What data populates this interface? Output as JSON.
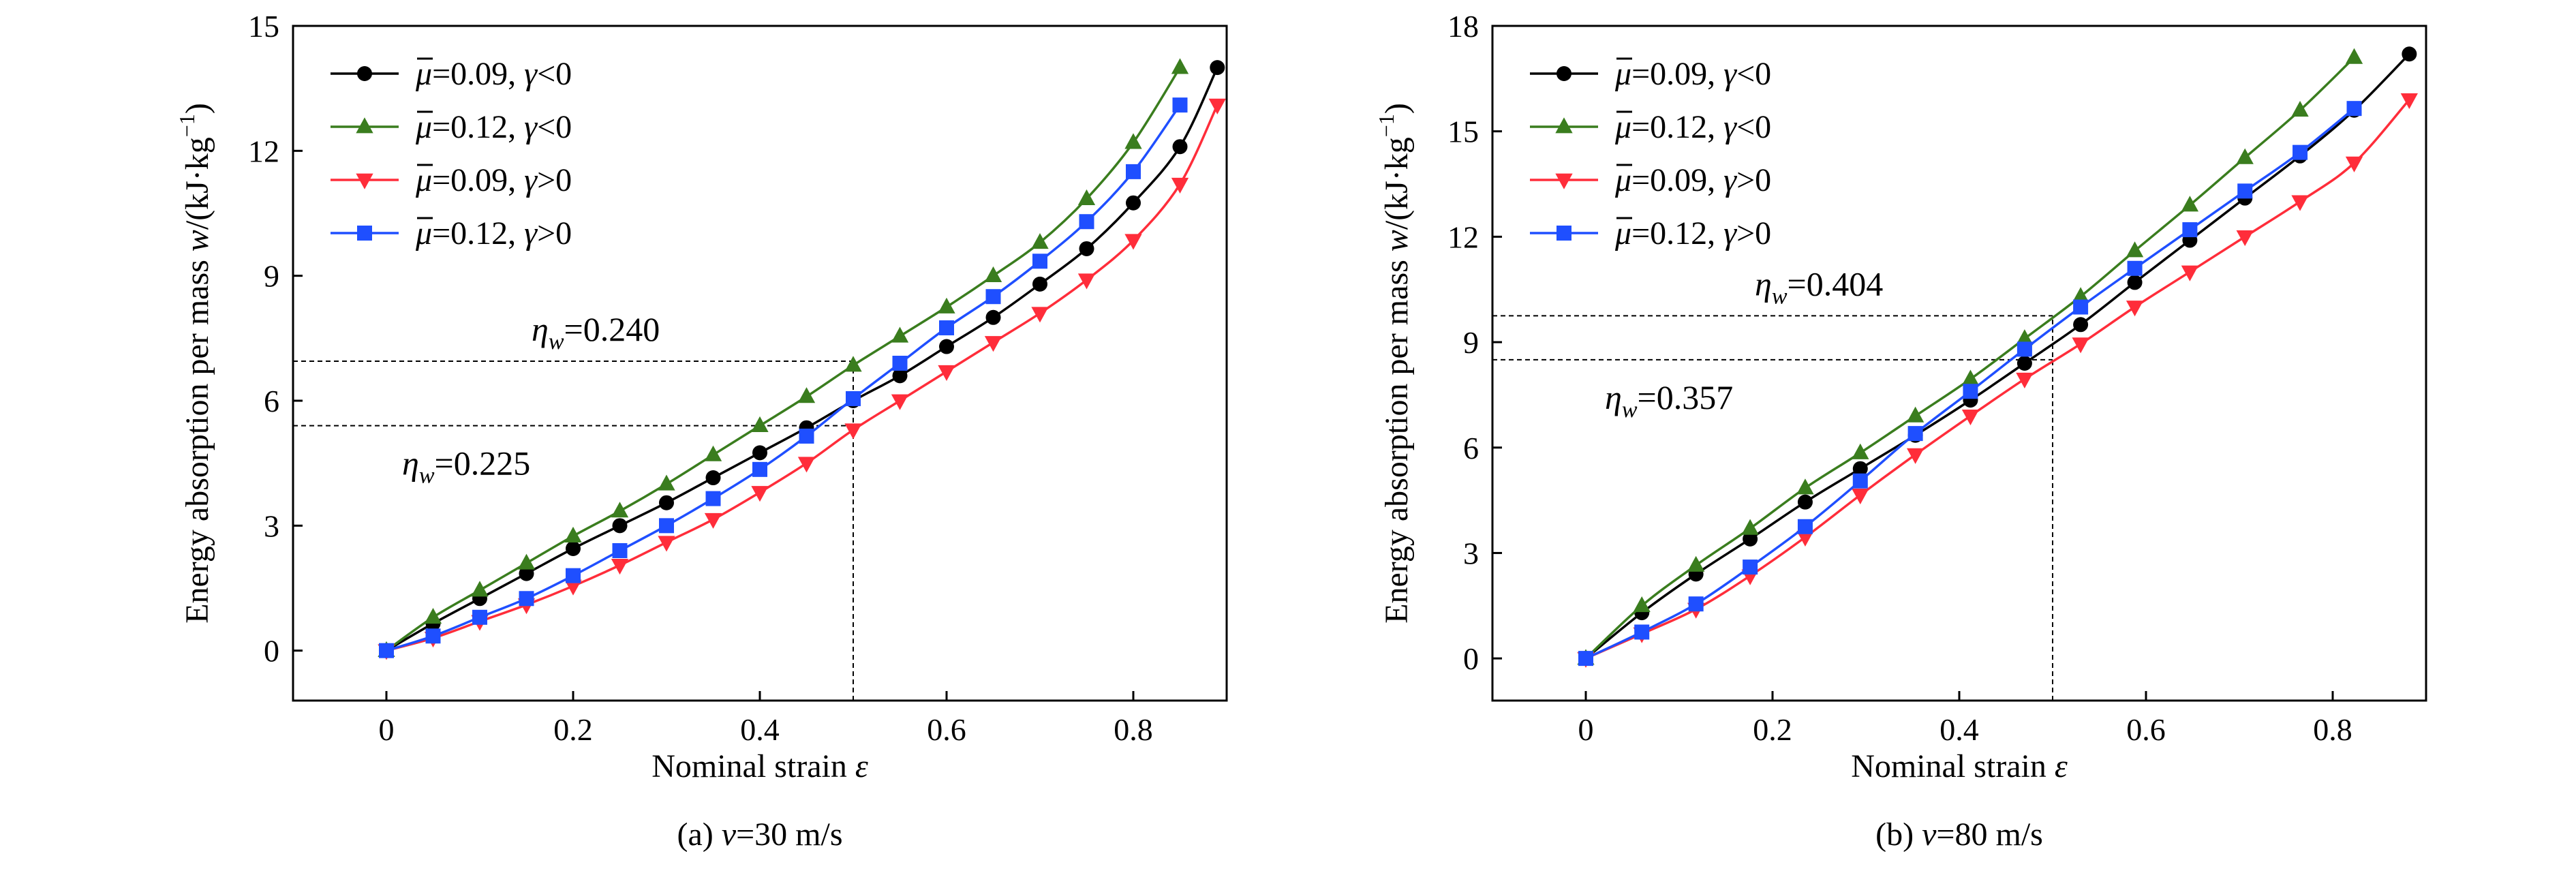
{
  "chart_data": [
    {
      "type": "line",
      "caption": {
        "prefix": "(a) ",
        "var": "v",
        "rest": "=30 m/s"
      },
      "xlabel": "Nominal strain",
      "xlabel_sym": "ε",
      "ylabel": "Energy absorption per mass",
      "ylabel_sym": "w",
      "ylabel_unit": "/(kJ·kg",
      "ylabel_exp": "−1",
      "xlim": [
        -0.1,
        0.9
      ],
      "ylim": [
        -1.2,
        15
      ],
      "xticks": [
        0,
        0.2,
        0.4,
        0.6,
        0.8
      ],
      "xtick_labels": [
        "0",
        "0.2",
        "0.4",
        "0.6",
        "0.8"
      ],
      "yticks": [
        0,
        3,
        6,
        9,
        12,
        15
      ],
      "ytick_labels": [
        "0",
        "3",
        "6",
        "9",
        "12",
        "15"
      ],
      "legend_position": "top-left",
      "series": [
        {
          "mu": "0.09",
          "gamma_rel": "<",
          "color": "#000000",
          "marker": "circle",
          "x": [
            0,
            0.05,
            0.1,
            0.15,
            0.2,
            0.25,
            0.3,
            0.35,
            0.4,
            0.45,
            0.5,
            0.55,
            0.6,
            0.65,
            0.7,
            0.75,
            0.8,
            0.85,
            0.89
          ],
          "y": [
            0,
            0.65,
            1.25,
            1.85,
            2.45,
            3.0,
            3.55,
            4.15,
            4.75,
            5.35,
            6.0,
            6.6,
            7.3,
            8.0,
            8.8,
            9.65,
            10.75,
            12.1,
            14.0
          ]
        },
        {
          "mu": "0.12",
          "gamma_rel": "<",
          "color": "#3a7d1e",
          "marker": "triangle-up",
          "x": [
            0,
            0.05,
            0.1,
            0.15,
            0.2,
            0.25,
            0.3,
            0.35,
            0.4,
            0.45,
            0.5,
            0.55,
            0.6,
            0.65,
            0.7,
            0.75,
            0.8,
            0.85
          ],
          "y": [
            0,
            0.8,
            1.45,
            2.1,
            2.75,
            3.35,
            4.0,
            4.7,
            5.4,
            6.1,
            6.85,
            7.55,
            8.25,
            9.0,
            9.8,
            10.85,
            12.2,
            14.0
          ]
        },
        {
          "mu": "0.09",
          "gamma_rel": ">",
          "color": "#ff2d3a",
          "marker": "triangle-down",
          "x": [
            0,
            0.05,
            0.1,
            0.15,
            0.2,
            0.25,
            0.3,
            0.35,
            0.4,
            0.45,
            0.5,
            0.55,
            0.6,
            0.65,
            0.7,
            0.75,
            0.8,
            0.85,
            0.89
          ],
          "y": [
            0,
            0.3,
            0.7,
            1.1,
            1.55,
            2.05,
            2.6,
            3.15,
            3.8,
            4.5,
            5.3,
            6.0,
            6.7,
            7.4,
            8.1,
            8.9,
            9.85,
            11.2,
            13.1
          ]
        },
        {
          "mu": "0.12",
          "gamma_rel": ">",
          "color": "#1f4fff",
          "marker": "square",
          "x": [
            0,
            0.05,
            0.1,
            0.15,
            0.2,
            0.25,
            0.3,
            0.35,
            0.4,
            0.45,
            0.5,
            0.55,
            0.6,
            0.65,
            0.7,
            0.75,
            0.8,
            0.85
          ],
          "y": [
            0,
            0.35,
            0.8,
            1.25,
            1.8,
            2.4,
            3.0,
            3.65,
            4.35,
            5.15,
            6.05,
            6.9,
            7.75,
            8.5,
            9.35,
            10.3,
            11.5,
            13.1
          ]
        }
      ],
      "annotations": [
        {
          "prefix": "η",
          "sub": "w",
          "value": "=0.240",
          "y": 6.95,
          "x_end": 0.5
        },
        {
          "prefix": "η",
          "sub": "w",
          "value": "=0.225",
          "y": 5.4,
          "x_end": 0.5
        }
      ],
      "vline_x": 0.5
    },
    {
      "type": "line",
      "caption": {
        "prefix": "(b) ",
        "var": "v",
        "rest": "=80 m/s"
      },
      "xlabel": "Nominal strain",
      "xlabel_sym": "ε",
      "ylabel": "Energy absorption per mass",
      "ylabel_sym": "w",
      "ylabel_unit": "/(kJ·kg",
      "ylabel_exp": "−1",
      "xlim": [
        -0.1,
        0.9
      ],
      "ylim": [
        -1.2,
        18
      ],
      "xticks": [
        0,
        0.2,
        0.4,
        0.6,
        0.8
      ],
      "xtick_labels": [
        "0",
        "0.2",
        "0.4",
        "0.6",
        "0.8"
      ],
      "yticks": [
        0,
        3,
        6,
        9,
        12,
        15,
        18
      ],
      "ytick_labels": [
        "0",
        "3",
        "6",
        "9",
        "12",
        "15",
        "18"
      ],
      "legend_position": "top-left",
      "series": [
        {
          "mu": "0.09",
          "gamma_rel": "<",
          "color": "#000000",
          "marker": "circle",
          "x": [
            0,
            0.06,
            0.118,
            0.176,
            0.235,
            0.294,
            0.353,
            0.412,
            0.47,
            0.53,
            0.588,
            0.647,
            0.706,
            0.765,
            0.823,
            0.882
          ],
          "y": [
            0,
            1.3,
            2.4,
            3.4,
            4.45,
            5.4,
            6.35,
            7.35,
            8.4,
            9.5,
            10.7,
            11.9,
            13.1,
            14.3,
            15.6,
            17.2
          ]
        },
        {
          "mu": "0.12",
          "gamma_rel": "<",
          "color": "#3a7d1e",
          "marker": "triangle-up",
          "x": [
            0,
            0.06,
            0.118,
            0.176,
            0.235,
            0.294,
            0.353,
            0.412,
            0.47,
            0.53,
            0.588,
            0.647,
            0.706,
            0.765,
            0.823
          ],
          "y": [
            0,
            1.5,
            2.65,
            3.7,
            4.85,
            5.85,
            6.9,
            7.95,
            9.1,
            10.3,
            11.6,
            12.9,
            14.25,
            15.6,
            17.1
          ]
        },
        {
          "mu": "0.09",
          "gamma_rel": ">",
          "color": "#ff2d3a",
          "marker": "triangle-down",
          "x": [
            0,
            0.06,
            0.118,
            0.176,
            0.235,
            0.294,
            0.353,
            0.412,
            0.47,
            0.53,
            0.588,
            0.647,
            0.706,
            0.765,
            0.823,
            0.882
          ],
          "y": [
            0,
            0.7,
            1.4,
            2.35,
            3.45,
            4.65,
            5.8,
            6.9,
            7.95,
            8.95,
            10.0,
            11.0,
            12.0,
            13.0,
            14.1,
            15.9
          ]
        },
        {
          "mu": "0.12",
          "gamma_rel": ">",
          "color": "#1f4fff",
          "marker": "square",
          "x": [
            0,
            0.06,
            0.118,
            0.176,
            0.235,
            0.294,
            0.353,
            0.412,
            0.47,
            0.53,
            0.588,
            0.647,
            0.706,
            0.765,
            0.823
          ],
          "y": [
            0,
            0.75,
            1.55,
            2.6,
            3.75,
            5.05,
            6.4,
            7.6,
            8.8,
            10.0,
            11.1,
            12.2,
            13.3,
            14.4,
            15.65
          ]
        }
      ],
      "annotations": [
        {
          "prefix": "η",
          "sub": "w",
          "value": "=0.404",
          "y": 9.75,
          "x_end": 0.5
        },
        {
          "prefix": "η",
          "sub": "w",
          "value": "=0.357",
          "y": 8.5,
          "x_end": 0.5
        }
      ],
      "vline_x": 0.5
    }
  ]
}
